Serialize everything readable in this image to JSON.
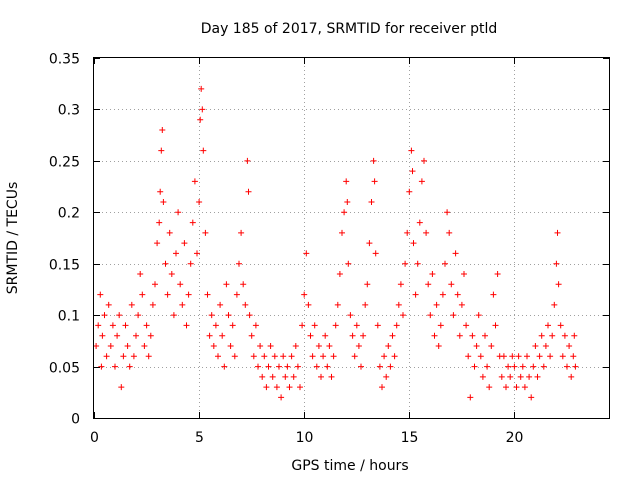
{
  "chart_data": {
    "type": "scatter",
    "title": "Day 185 of 2017, SRMTID for receiver ptld",
    "xlabel": "GPS time / hours",
    "ylabel": "SRMTID / TECUs",
    "xlim": [
      0,
      24.5
    ],
    "ylim": [
      0,
      0.35
    ],
    "x_ticks": [
      0,
      5,
      10,
      15,
      20
    ],
    "x_tick_labels": [
      "0",
      "5",
      "10",
      "15",
      "20"
    ],
    "y_ticks": [
      0,
      0.05,
      0.1,
      0.15,
      0.2,
      0.25,
      0.3,
      0.35
    ],
    "y_tick_labels": [
      "0",
      "0.05",
      "0.1",
      "0.15",
      "0.2",
      "0.25",
      "0.3",
      "0.35"
    ],
    "grid": true,
    "marker": "+",
    "series_color": "#ff0000",
    "series": [
      {
        "name": "SRMTID",
        "points": [
          [
            0.1,
            0.07
          ],
          [
            0.2,
            0.09
          ],
          [
            0.3,
            0.12
          ],
          [
            0.35,
            0.05
          ],
          [
            0.4,
            0.08
          ],
          [
            0.5,
            0.1
          ],
          [
            0.6,
            0.06
          ],
          [
            0.7,
            0.11
          ],
          [
            0.8,
            0.07
          ],
          [
            0.9,
            0.09
          ],
          [
            1.0,
            0.05
          ],
          [
            1.1,
            0.08
          ],
          [
            1.2,
            0.1
          ],
          [
            1.3,
            0.03
          ],
          [
            1.4,
            0.06
          ],
          [
            1.5,
            0.09
          ],
          [
            1.6,
            0.07
          ],
          [
            1.7,
            0.05
          ],
          [
            1.8,
            0.11
          ],
          [
            1.9,
            0.06
          ],
          [
            2.0,
            0.08
          ],
          [
            2.1,
            0.1
          ],
          [
            2.2,
            0.14
          ],
          [
            2.3,
            0.12
          ],
          [
            2.4,
            0.07
          ],
          [
            2.5,
            0.09
          ],
          [
            2.6,
            0.06
          ],
          [
            2.7,
            0.08
          ],
          [
            2.8,
            0.11
          ],
          [
            2.9,
            0.13
          ],
          [
            3.0,
            0.17
          ],
          [
            3.1,
            0.19
          ],
          [
            3.15,
            0.22
          ],
          [
            3.2,
            0.26
          ],
          [
            3.25,
            0.28
          ],
          [
            3.3,
            0.21
          ],
          [
            3.4,
            0.15
          ],
          [
            3.5,
            0.12
          ],
          [
            3.6,
            0.18
          ],
          [
            3.7,
            0.14
          ],
          [
            3.8,
            0.1
          ],
          [
            3.9,
            0.16
          ],
          [
            4.0,
            0.2
          ],
          [
            4.1,
            0.13
          ],
          [
            4.2,
            0.11
          ],
          [
            4.3,
            0.17
          ],
          [
            4.4,
            0.09
          ],
          [
            4.5,
            0.12
          ],
          [
            4.6,
            0.15
          ],
          [
            4.7,
            0.19
          ],
          [
            4.8,
            0.23
          ],
          [
            4.9,
            0.16
          ],
          [
            5.0,
            0.21
          ],
          [
            5.05,
            0.29
          ],
          [
            5.1,
            0.32
          ],
          [
            5.15,
            0.3
          ],
          [
            5.2,
            0.26
          ],
          [
            5.3,
            0.18
          ],
          [
            5.4,
            0.12
          ],
          [
            5.5,
            0.08
          ],
          [
            5.6,
            0.1
          ],
          [
            5.7,
            0.07
          ],
          [
            5.8,
            0.09
          ],
          [
            5.9,
            0.06
          ],
          [
            6.0,
            0.11
          ],
          [
            6.1,
            0.08
          ],
          [
            6.2,
            0.05
          ],
          [
            6.3,
            0.13
          ],
          [
            6.4,
            0.1
          ],
          [
            6.5,
            0.07
          ],
          [
            6.6,
            0.09
          ],
          [
            6.7,
            0.06
          ],
          [
            6.8,
            0.12
          ],
          [
            6.9,
            0.15
          ],
          [
            7.0,
            0.18
          ],
          [
            7.1,
            0.13
          ],
          [
            7.2,
            0.11
          ],
          [
            7.3,
            0.25
          ],
          [
            7.35,
            0.22
          ],
          [
            7.4,
            0.1
          ],
          [
            7.5,
            0.08
          ],
          [
            7.6,
            0.06
          ],
          [
            7.7,
            0.09
          ],
          [
            7.8,
            0.05
          ],
          [
            7.9,
            0.07
          ],
          [
            8.0,
            0.04
          ],
          [
            8.1,
            0.06
          ],
          [
            8.2,
            0.03
          ],
          [
            8.3,
            0.05
          ],
          [
            8.4,
            0.07
          ],
          [
            8.5,
            0.04
          ],
          [
            8.6,
            0.06
          ],
          [
            8.7,
            0.03
          ],
          [
            8.8,
            0.05
          ],
          [
            8.9,
            0.02
          ],
          [
            9.0,
            0.06
          ],
          [
            9.1,
            0.04
          ],
          [
            9.2,
            0.05
          ],
          [
            9.3,
            0.03
          ],
          [
            9.4,
            0.06
          ],
          [
            9.5,
            0.04
          ],
          [
            9.6,
            0.07
          ],
          [
            9.7,
            0.05
          ],
          [
            9.8,
            0.03
          ],
          [
            9.9,
            0.09
          ],
          [
            10.0,
            0.12
          ],
          [
            10.1,
            0.16
          ],
          [
            10.2,
            0.11
          ],
          [
            10.3,
            0.08
          ],
          [
            10.4,
            0.06
          ],
          [
            10.5,
            0.09
          ],
          [
            10.6,
            0.05
          ],
          [
            10.7,
            0.07
          ],
          [
            10.8,
            0.04
          ],
          [
            10.9,
            0.06
          ],
          [
            11.0,
            0.08
          ],
          [
            11.1,
            0.05
          ],
          [
            11.2,
            0.07
          ],
          [
            11.3,
            0.04
          ],
          [
            11.4,
            0.06
          ],
          [
            11.5,
            0.09
          ],
          [
            11.6,
            0.11
          ],
          [
            11.7,
            0.14
          ],
          [
            11.8,
            0.18
          ],
          [
            11.9,
            0.2
          ],
          [
            12.0,
            0.23
          ],
          [
            12.05,
            0.21
          ],
          [
            12.1,
            0.15
          ],
          [
            12.2,
            0.1
          ],
          [
            12.3,
            0.08
          ],
          [
            12.4,
            0.06
          ],
          [
            12.5,
            0.09
          ],
          [
            12.6,
            0.07
          ],
          [
            12.7,
            0.05
          ],
          [
            12.8,
            0.08
          ],
          [
            12.9,
            0.11
          ],
          [
            13.0,
            0.13
          ],
          [
            13.1,
            0.17
          ],
          [
            13.2,
            0.21
          ],
          [
            13.3,
            0.25
          ],
          [
            13.35,
            0.23
          ],
          [
            13.4,
            0.16
          ],
          [
            13.5,
            0.09
          ],
          [
            13.6,
            0.05
          ],
          [
            13.7,
            0.03
          ],
          [
            13.8,
            0.06
          ],
          [
            13.9,
            0.04
          ],
          [
            14.0,
            0.07
          ],
          [
            14.1,
            0.05
          ],
          [
            14.2,
            0.08
          ],
          [
            14.3,
            0.06
          ],
          [
            14.4,
            0.09
          ],
          [
            14.5,
            0.11
          ],
          [
            14.6,
            0.13
          ],
          [
            14.7,
            0.1
          ],
          [
            14.8,
            0.15
          ],
          [
            14.9,
            0.18
          ],
          [
            15.0,
            0.22
          ],
          [
            15.1,
            0.26
          ],
          [
            15.15,
            0.24
          ],
          [
            15.2,
            0.17
          ],
          [
            15.3,
            0.12
          ],
          [
            15.4,
            0.15
          ],
          [
            15.5,
            0.19
          ],
          [
            15.6,
            0.23
          ],
          [
            15.7,
            0.25
          ],
          [
            15.8,
            0.18
          ],
          [
            15.9,
            0.13
          ],
          [
            16.0,
            0.1
          ],
          [
            16.1,
            0.14
          ],
          [
            16.2,
            0.08
          ],
          [
            16.3,
            0.11
          ],
          [
            16.4,
            0.07
          ],
          [
            16.5,
            0.09
          ],
          [
            16.6,
            0.12
          ],
          [
            16.7,
            0.15
          ],
          [
            16.8,
            0.2
          ],
          [
            16.9,
            0.18
          ],
          [
            17.0,
            0.13
          ],
          [
            17.1,
            0.1
          ],
          [
            17.2,
            0.16
          ],
          [
            17.3,
            0.12
          ],
          [
            17.4,
            0.08
          ],
          [
            17.5,
            0.11
          ],
          [
            17.6,
            0.14
          ],
          [
            17.7,
            0.09
          ],
          [
            17.8,
            0.06
          ],
          [
            17.9,
            0.02
          ],
          [
            18.0,
            0.08
          ],
          [
            18.1,
            0.05
          ],
          [
            18.2,
            0.07
          ],
          [
            18.3,
            0.1
          ],
          [
            18.4,
            0.06
          ],
          [
            18.5,
            0.04
          ],
          [
            18.6,
            0.08
          ],
          [
            18.7,
            0.05
          ],
          [
            18.8,
            0.03
          ],
          [
            18.9,
            0.07
          ],
          [
            19.0,
            0.12
          ],
          [
            19.1,
            0.09
          ],
          [
            19.2,
            0.14
          ],
          [
            19.3,
            0.06
          ],
          [
            19.4,
            0.04
          ],
          [
            19.5,
            0.06
          ],
          [
            19.6,
            0.03
          ],
          [
            19.7,
            0.05
          ],
          [
            19.8,
            0.04
          ],
          [
            19.9,
            0.06
          ],
          [
            20.0,
            0.05
          ],
          [
            20.1,
            0.03
          ],
          [
            20.2,
            0.06
          ],
          [
            20.3,
            0.04
          ],
          [
            20.4,
            0.05
          ],
          [
            20.5,
            0.03
          ],
          [
            20.6,
            0.06
          ],
          [
            20.7,
            0.04
          ],
          [
            20.8,
            0.02
          ],
          [
            20.9,
            0.05
          ],
          [
            21.0,
            0.07
          ],
          [
            21.1,
            0.04
          ],
          [
            21.2,
            0.06
          ],
          [
            21.3,
            0.08
          ],
          [
            21.4,
            0.05
          ],
          [
            21.5,
            0.07
          ],
          [
            21.6,
            0.09
          ],
          [
            21.7,
            0.06
          ],
          [
            21.8,
            0.08
          ],
          [
            21.9,
            0.11
          ],
          [
            22.0,
            0.15
          ],
          [
            22.05,
            0.18
          ],
          [
            22.1,
            0.13
          ],
          [
            22.2,
            0.09
          ],
          [
            22.3,
            0.06
          ],
          [
            22.4,
            0.08
          ],
          [
            22.5,
            0.05
          ],
          [
            22.6,
            0.07
          ],
          [
            22.7,
            0.04
          ],
          [
            22.8,
            0.06
          ],
          [
            22.85,
            0.08
          ],
          [
            22.9,
            0.05
          ]
        ]
      }
    ]
  }
}
